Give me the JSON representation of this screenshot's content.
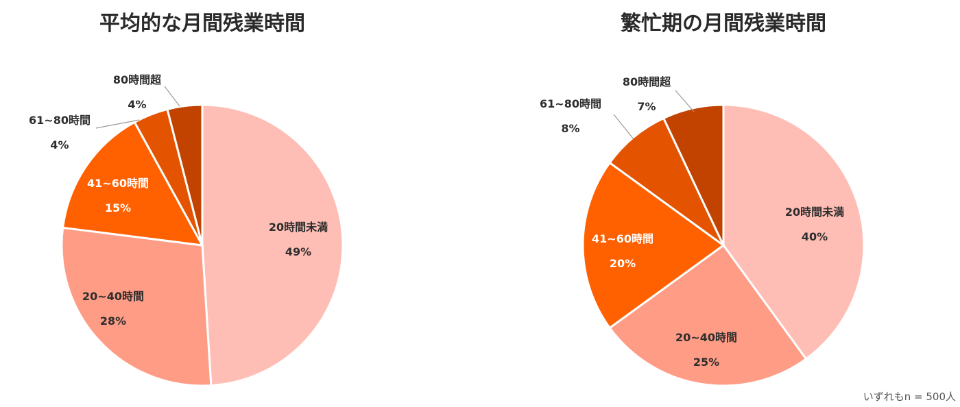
{
  "note": "いずれもn = 500人",
  "chart_data": [
    {
      "type": "pie",
      "title": "平均的な月間残業時間",
      "unit": "%",
      "categories": [
        "20時間未満",
        "20~40時間",
        "41~60時間",
        "61~80時間",
        "80時間超"
      ],
      "values": [
        49,
        28,
        15,
        4,
        4
      ],
      "colors": [
        "#FFBEB5",
        "#FF9C85",
        "#FF6000",
        "#E35300",
        "#C24200"
      ],
      "start": "12 o'clock, clockwise",
      "legend": "none (labels on slices)"
    },
    {
      "type": "pie",
      "title": "繁忙期の月間残業時間",
      "unit": "%",
      "categories": [
        "20時間未満",
        "20~40時間",
        "41~60時間",
        "61~80時間",
        "80時間超"
      ],
      "values": [
        40,
        25,
        20,
        8,
        7
      ],
      "colors": [
        "#FFBEB5",
        "#FF9C85",
        "#FF6000",
        "#E35300",
        "#C24200"
      ],
      "start": "12 o'clock, clockwise",
      "legend": "none (labels on slices)"
    }
  ]
}
